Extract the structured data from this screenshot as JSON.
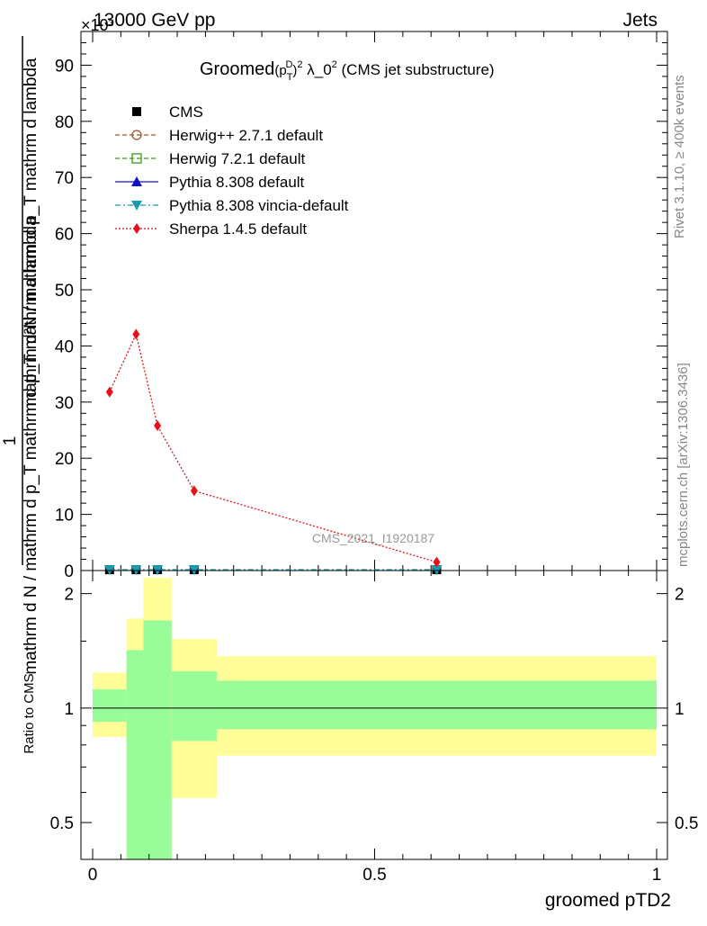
{
  "header": {
    "left": "13000 GeV pp",
    "right": "Jets",
    "exponent": "×10³"
  },
  "side_labels": {
    "rivet": "Rivet 3.1.10, ≥ 400k events",
    "mcplots": "mcplots.cern.ch [arXiv:1306.3436]"
  },
  "chart_data": [
    {
      "type": "line",
      "title": "Groomed",
      "title_math": {
        "base": "(p",
        "sub": "T",
        "sup": "D",
        "close": ")",
        "sup2": "2",
        "rest": " λ_0",
        "sup3": "2",
        "tail": " (CMS jet substructure)"
      },
      "ylabel_numerator": "1",
      "ylabel_denominator": "mathrm d N / mathrm d p_T mathrm d p_T mathrm d lambda",
      "ylabel_numerator_top": "mathrm d²N",
      "ylabel_full": "mathrm d N / mathrm d p_T mathrm d p_T mathrm d lambda",
      "ylabel_top": "mathrm d²N / mathrm d p_T mathrm d lambda",
      "watermark": "CMS_2021_I1920187",
      "xlim": [
        0,
        1
      ],
      "ylim": [
        0,
        96
      ],
      "y_scale_note": "values ×10³",
      "yticks": [
        0,
        10,
        20,
        30,
        40,
        50,
        60,
        70,
        80,
        90
      ],
      "ytick_labels": [
        "0",
        "10",
        "20",
        "30",
        "40",
        "50",
        "60",
        "70",
        "80",
        "90"
      ],
      "legend_position": "top-left",
      "series": [
        {
          "name": "CMS",
          "color": "#000000",
          "marker": "square-filled",
          "line": "none",
          "x": [
            0.03,
            0.077,
            0.115,
            0.18,
            0.61
          ],
          "y": [
            0.15,
            0.15,
            0.15,
            0.15,
            0.15
          ]
        },
        {
          "name": "Herwig++ 2.7.1 default",
          "color": "#a0522d",
          "marker": "circle-open",
          "line": "dashed",
          "x": [],
          "y": []
        },
        {
          "name": "Herwig 7.2.1 default",
          "color": "#3a9a1c",
          "marker": "square-open",
          "line": "dashed",
          "x": [],
          "y": []
        },
        {
          "name": "Pythia 8.308 default",
          "color": "#1010c8",
          "marker": "triangle-up",
          "line": "solid",
          "x": [],
          "y": []
        },
        {
          "name": "Pythia 8.308 vincia-default",
          "color": "#1a9bb0",
          "marker": "triangle-down",
          "line": "dashdot",
          "x": [
            0.03,
            0.077,
            0.115,
            0.18,
            0.61
          ],
          "y": [
            0.15,
            0.15,
            0.15,
            0.15,
            0.15
          ]
        },
        {
          "name": "Sherpa 1.4.5 default",
          "color": "#e8101a",
          "marker": "diamond",
          "line": "dotted",
          "x": [
            0.03,
            0.077,
            0.115,
            0.18,
            0.61
          ],
          "y": [
            31.8,
            42.1,
            25.8,
            14.2,
            1.5
          ]
        }
      ]
    },
    {
      "type": "area",
      "ylabel": "Ratio to CMS",
      "xlabel": "groomed pTD2",
      "xlim": [
        0,
        1
      ],
      "ylim": [
        0.4,
        2.3
      ],
      "y_scale": "log",
      "yticks": [
        0.5,
        1,
        2
      ],
      "ytick_labels": [
        "0.5",
        "1",
        "2"
      ],
      "xticks": [
        0,
        0.5,
        1
      ],
      "xtick_labels": [
        "0",
        "0.5",
        "1"
      ],
      "bins": [
        {
          "lo": 0.0,
          "hi": 0.06,
          "stat": [
            0.92,
            1.12
          ],
          "total": [
            0.84,
            1.24
          ]
        },
        {
          "lo": 0.06,
          "hi": 0.09,
          "stat": [
            0.4,
            1.42
          ],
          "total": [
            0.4,
            1.72
          ]
        },
        {
          "lo": 0.09,
          "hi": 0.14,
          "stat": [
            0.4,
            1.7
          ],
          "total": [
            0.4,
            2.2
          ]
        },
        {
          "lo": 0.14,
          "hi": 0.22,
          "stat": [
            0.82,
            1.25
          ],
          "total": [
            0.58,
            1.52
          ]
        },
        {
          "lo": 0.22,
          "hi": 1.0,
          "stat": [
            0.88,
            1.18
          ],
          "total": [
            0.75,
            1.37
          ]
        }
      ],
      "colors": {
        "stat": "#98fc98",
        "total": "#fffd98",
        "reference": "#000000"
      }
    }
  ]
}
